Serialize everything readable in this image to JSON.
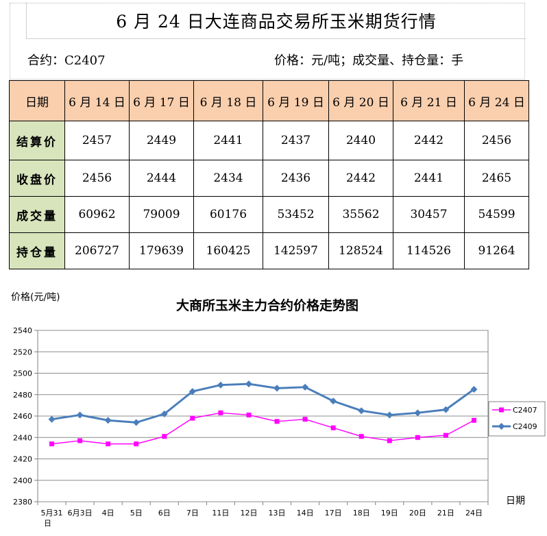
{
  "header": {
    "title": "6 月 24 日大连商品交易所玉米期货行情",
    "contract": "合约：C2407",
    "units": "价格：元/吨；成交量、持仓量：手"
  },
  "table": {
    "date_label": "日期",
    "dates": [
      "6 月 14 日",
      "6 月 17 日",
      "6 月 18 日",
      "6 月 19 日",
      "6 月 20 日",
      "6 月 21 日",
      "6 月 24 日"
    ],
    "rows": [
      {
        "label": "结算价",
        "values": [
          "2457",
          "2449",
          "2441",
          "2437",
          "2440",
          "2442",
          "2456"
        ]
      },
      {
        "label": "收盘价",
        "values": [
          "2456",
          "2444",
          "2434",
          "2436",
          "2442",
          "2441",
          "2465"
        ]
      },
      {
        "label": "成交量",
        "values": [
          "60962",
          "79009",
          "60176",
          "53452",
          "35562",
          "30457",
          "54599"
        ]
      },
      {
        "label": "持仓量",
        "values": [
          "206727",
          "179639",
          "160425",
          "142597",
          "128524",
          "114526",
          "91264"
        ]
      }
    ],
    "colors": {
      "header_bg": "#f9cfae",
      "label_bg": "#d8e4bc"
    }
  },
  "chart_data": {
    "type": "line",
    "title": "大商所玉米主力合约价格走势图",
    "ylabel": "价格(元/吨)",
    "xlabel": "日期",
    "ylim": [
      2380,
      2540
    ],
    "yticks": [
      2380,
      2400,
      2420,
      2440,
      2460,
      2480,
      2500,
      2520,
      2540
    ],
    "grid": true,
    "legend_position": "right",
    "categories": [
      "5月31日",
      "6月3日",
      "4日",
      "5日",
      "6日",
      "7日",
      "11日",
      "12日",
      "13日",
      "14日",
      "17日",
      "18日",
      "19日",
      "20日",
      "21日",
      "24日"
    ],
    "series": [
      {
        "name": "C2407",
        "color": "#ff00ff",
        "marker": "square",
        "values": [
          2434,
          2437,
          2434,
          2434,
          2441,
          2458,
          2463,
          2461,
          2455,
          2457,
          2449,
          2441,
          2437,
          2440,
          2442,
          2456
        ]
      },
      {
        "name": "C2409",
        "color": "#4a7ebb",
        "marker": "diamond",
        "values": [
          2457,
          2461,
          2456,
          2454,
          2462,
          2483,
          2489,
          2490,
          2486,
          2487,
          2474,
          2465,
          2461,
          2463,
          2466,
          2485
        ]
      }
    ]
  }
}
